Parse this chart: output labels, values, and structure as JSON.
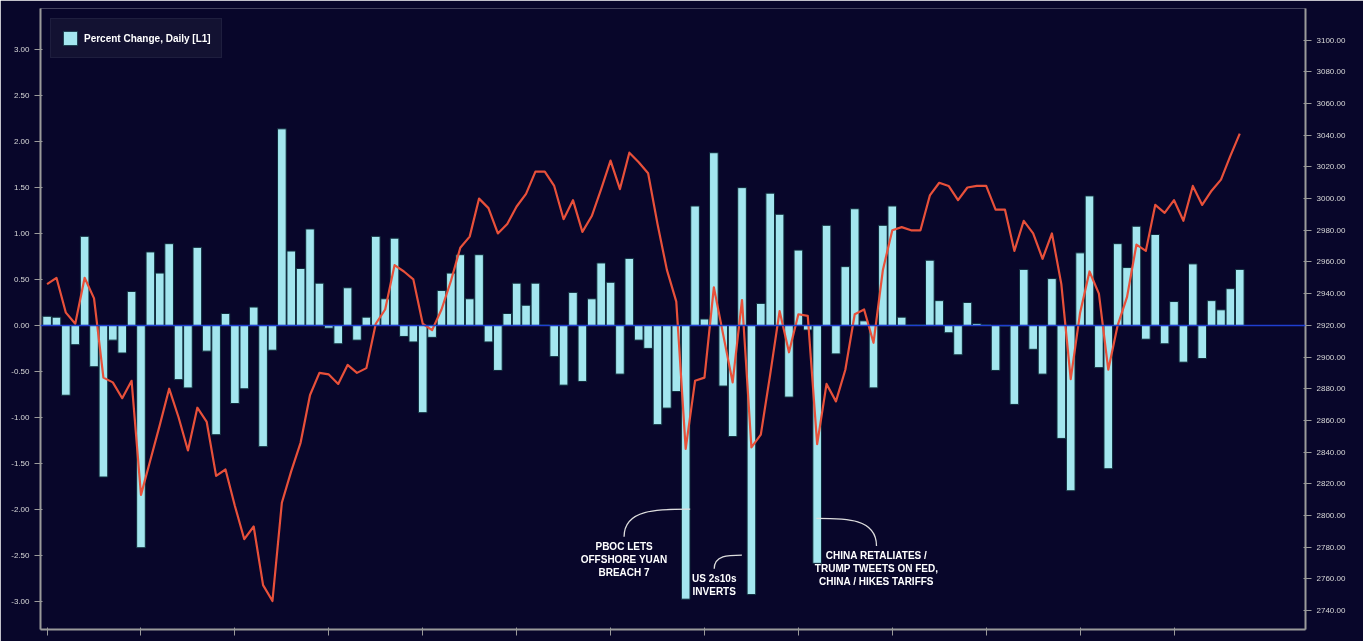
{
  "chart_data": {
    "type": "bar",
    "categories": [
      null,
      null,
      null,
      null,
      null,
      null,
      null,
      null,
      null,
      null,
      null,
      null,
      null,
      null,
      null,
      null,
      null,
      null,
      null,
      null,
      null,
      null,
      null,
      null,
      null,
      null,
      null,
      null,
      null,
      null,
      null,
      null,
      null,
      null,
      null,
      null,
      null,
      null,
      null,
      null,
      null,
      null,
      null,
      null,
      null,
      null,
      null,
      null,
      null,
      null,
      null,
      null,
      null,
      null,
      null,
      null,
      null,
      null,
      null,
      null,
      null,
      null,
      null,
      null,
      null,
      null,
      null,
      null,
      null,
      null,
      null,
      null,
      null,
      null,
      null,
      null,
      null,
      null,
      null,
      null,
      null,
      null,
      null,
      null,
      null,
      null,
      null,
      null,
      null,
      null,
      null,
      null,
      null,
      null,
      null,
      null,
      null,
      null,
      null,
      null,
      null,
      null,
      null,
      null,
      null,
      null,
      null,
      null,
      null,
      null,
      null,
      null,
      null,
      null,
      null,
      null,
      null,
      null,
      null,
      null,
      null,
      null,
      null,
      null,
      null,
      null,
      null,
      null
    ],
    "series": [
      {
        "name": "Percent Change, Daily [L1]",
        "color": "#a3e6ef",
        "values": [
          0.1,
          0.09,
          -0.76,
          -0.21,
          0.97,
          -0.45,
          -1.65,
          -0.16,
          -0.3,
          0.37,
          -2.42,
          0.8,
          0.57,
          0.89,
          -0.59,
          -0.68,
          0.85,
          -0.28,
          -1.19,
          0.13,
          -0.85,
          -0.69,
          0.2,
          -1.32,
          -0.27,
          2.14,
          0.81,
          0.62,
          1.05,
          0.46,
          -0.03,
          -0.2,
          0.41,
          -0.16,
          0.09,
          0.97,
          0.29,
          0.95,
          -0.12,
          -0.18,
          -0.95,
          -0.13,
          0.38,
          0.57,
          0.77,
          0.29,
          0.77,
          -0.18,
          -0.49,
          0.13,
          0.46,
          0.22,
          0.46,
          0.01,
          -0.34,
          -0.65,
          0.36,
          -0.61,
          0.29,
          0.68,
          0.47,
          -0.53,
          0.73,
          -0.16,
          -0.25,
          -1.08,
          -0.9,
          -0.72,
          -2.98,
          1.3,
          0.07,
          1.88,
          -0.66,
          -1.21,
          1.5,
          -2.93,
          0.24,
          1.44,
          1.21,
          -0.78,
          0.82,
          -0.05,
          -2.59,
          1.09,
          -0.31,
          0.64,
          1.27,
          0.05,
          -0.68,
          1.09,
          1.3,
          0.09,
          0.01,
          0.01,
          0.71,
          0.27,
          -0.08,
          -0.32,
          0.25,
          0.02,
          0.01,
          -0.49,
          -0.01,
          -0.86,
          0.61,
          -0.26,
          -0.53,
          0.51,
          -1.23,
          -1.8,
          0.79,
          1.41,
          -0.46,
          -1.56,
          0.89,
          0.63,
          1.08,
          -0.15,
          0.99,
          -0.2,
          0.26,
          -0.4,
          0.67,
          -0.36,
          0.27,
          0.17,
          0.4,
          0.61
        ]
      },
      {
        "type": "line",
        "axis": "y2",
        "color": "#e8503a",
        "values": [
          2946,
          2950,
          2928,
          2921,
          2950,
          2937,
          2887,
          2884,
          2874,
          2885,
          2813,
          2835,
          2857,
          2880,
          2862,
          2841,
          2868,
          2859,
          2825,
          2829,
          2806,
          2785,
          2793,
          2756,
          2746,
          2808,
          2828,
          2846,
          2876,
          2890,
          2889,
          2883,
          2895,
          2890,
          2893,
          2921,
          2930,
          2958,
          2954,
          2949,
          2921,
          2917,
          2930,
          2948,
          2969,
          2976,
          3000,
          2994,
          2978,
          2984,
          2995,
          3003,
          3017,
          3017,
          3008,
          2987,
          2999,
          2979,
          2989,
          3006,
          3024,
          3006,
          3029,
          3023,
          3016,
          2984,
          2955,
          2935,
          2842,
          2885,
          2887,
          2944,
          2914,
          2884,
          2936,
          2843,
          2851,
          2889,
          2929,
          2903,
          2927,
          2926,
          2845,
          2883,
          2872,
          2892,
          2927,
          2930,
          2909,
          2955,
          2980,
          2982,
          2980,
          2980,
          3002,
          3010,
          3008,
          2999,
          3007,
          3008,
          3008,
          2993,
          2993,
          2967,
          2986,
          2978,
          2962,
          2978,
          2946,
          2886,
          2928,
          2954,
          2940,
          2892,
          2920,
          2938,
          2971,
          2967,
          2996,
          2991,
          2999,
          2986,
          3008,
          2996,
          3005,
          3012,
          3027,
          3041
        ]
      }
    ],
    "ylim": [
      -3.31,
      3.45
    ],
    "yticks": [
      {
        "value": -3,
        "label": "-3.00"
      },
      {
        "value": -2.5,
        "label": "-2.50"
      },
      {
        "value": -2,
        "label": "-2.00"
      },
      {
        "value": -1.5,
        "label": "-1.50"
      },
      {
        "value": -1,
        "label": "-1.00"
      },
      {
        "value": -0.5,
        "label": "-0.50"
      },
      {
        "value": 0,
        "label": "0.00"
      },
      {
        "value": 0.5,
        "label": "0.50"
      },
      {
        "value": 1,
        "label": "1.00"
      },
      {
        "value": 1.5,
        "label": "1.50"
      },
      {
        "value": 2,
        "label": "2.00"
      },
      {
        "value": 2.5,
        "label": "2.50"
      },
      {
        "value": 3,
        "label": "3.00"
      }
    ],
    "y2lim": [
      2728,
      3120
    ],
    "y2ticks": [
      {
        "value": 2740,
        "label": "2740.00"
      },
      {
        "value": 2760,
        "label": "2760.00"
      },
      {
        "value": 2780,
        "label": "2780.00"
      },
      {
        "value": 2800,
        "label": "2800.00"
      },
      {
        "value": 2820,
        "label": "2820.00"
      },
      {
        "value": 2840,
        "label": "2840.00"
      },
      {
        "value": 2860,
        "label": "2860.00"
      },
      {
        "value": 2880,
        "label": "2880.00"
      },
      {
        "value": 2900,
        "label": "2900.00"
      },
      {
        "value": 2920,
        "label": "2920.00"
      },
      {
        "value": 2940,
        "label": "2940.00"
      },
      {
        "value": 2960,
        "label": "2960.00"
      },
      {
        "value": 2980,
        "label": "2980.00"
      },
      {
        "value": 3000,
        "label": "3000.00"
      },
      {
        "value": 3020,
        "label": "3020.00"
      },
      {
        "value": 3040,
        "label": "3040.00"
      },
      {
        "value": 3060,
        "label": "3060.00"
      },
      {
        "value": 3080,
        "label": "3080.00"
      },
      {
        "value": 3100,
        "label": "3100.00"
      }
    ],
    "ref_lines": [
      {
        "axis": "y",
        "value": 0,
        "color": "#1f3fd0"
      }
    ],
    "annotations": [
      "PBOC LETS\nOFFSHORE YUAN\nBREACH 7",
      "US 2s10s\nINVERTS",
      "CHINA RETALIATES /\nTRUMP TWEETS ON FED,\nCHINA / HIKES TARIFFS"
    ],
    "legend": "top left",
    "tick_labels": "y",
    "grid": false
  }
}
